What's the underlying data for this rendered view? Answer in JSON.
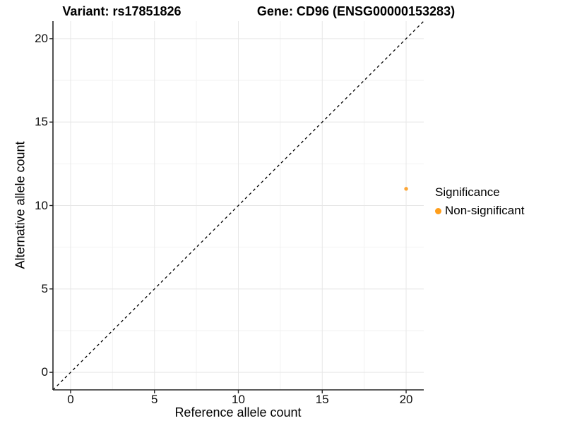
{
  "titles": {
    "variant": "Variant: rs17851826",
    "gene": "Gene: CD96 (ENSG00000153283)"
  },
  "chart_data": {
    "type": "scatter",
    "title_left": "Variant: rs17851826",
    "title_right": "Gene: CD96 (ENSG00000153283)",
    "xlabel": "Reference allele count",
    "ylabel": "Alternative allele count",
    "xlim": [
      -1.05,
      21.05
    ],
    "ylim": [
      -1.05,
      21.05
    ],
    "xticks": [
      0,
      5,
      10,
      15,
      20
    ],
    "yticks": [
      0,
      5,
      10,
      15,
      20
    ],
    "minor_xticks": [
      2.5,
      7.5,
      12.5,
      17.5
    ],
    "minor_yticks": [
      2.5,
      7.5,
      12.5,
      17.5
    ],
    "grid": true,
    "identity_line": {
      "style": "dashed",
      "color": "#000000",
      "from": [
        -1.05,
        -1.05
      ],
      "to": [
        21.05,
        21.05
      ]
    },
    "series": [
      {
        "name": "Non-significant",
        "color": "#FCA636",
        "points": [
          {
            "x": 20,
            "y": 11
          }
        ]
      }
    ],
    "legend": {
      "title": "Significance",
      "position": "right",
      "items": [
        {
          "label": "Non-significant",
          "color": "#FF9E1B"
        }
      ]
    }
  },
  "colors": {
    "background": "#ffffff",
    "axis_line": "#262626",
    "tick_mark": "#262626",
    "major_grid": "#e7e7e7",
    "minor_grid": "#f2f2f2",
    "point": "#FCA636",
    "identity_line": "#000000",
    "text": "#000000"
  }
}
